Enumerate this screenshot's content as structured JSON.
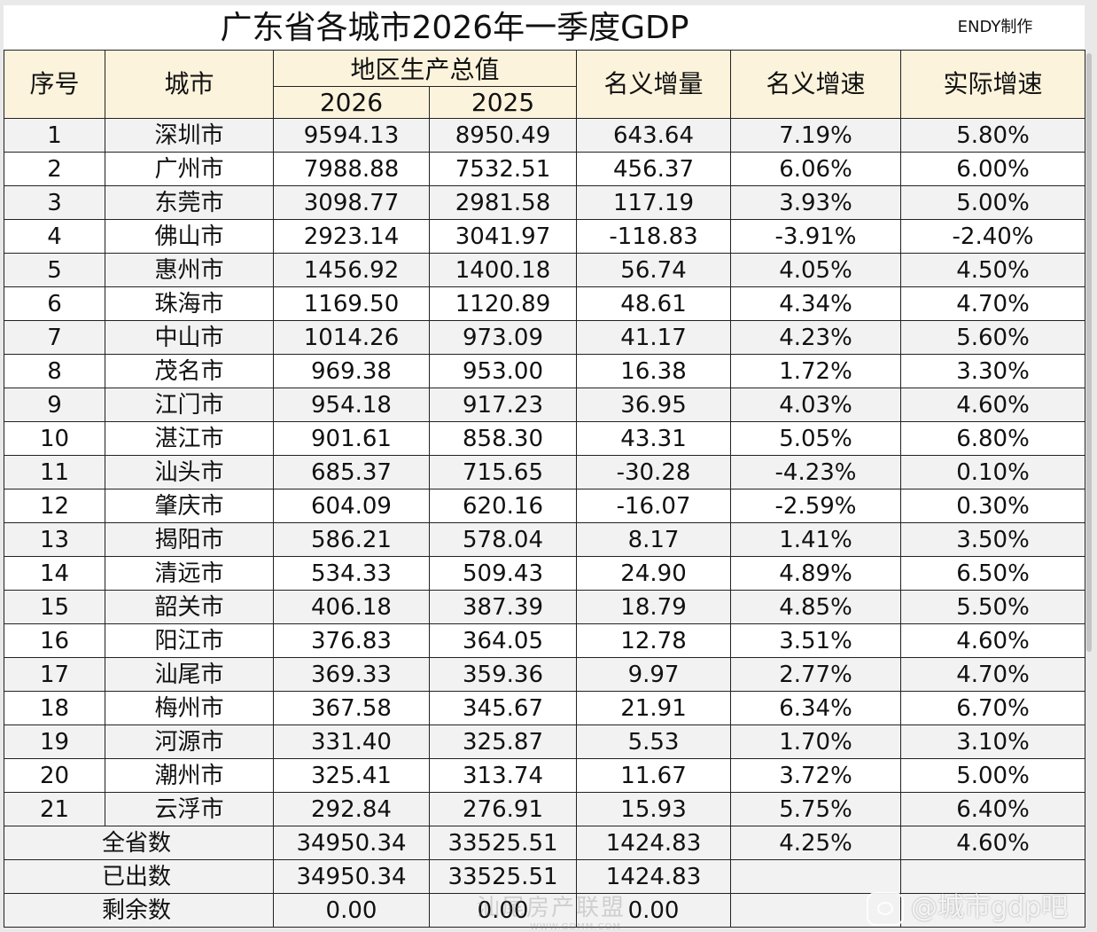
{
  "title": "广东省各城市2026年一季度GDP",
  "author_note": "ENDY制作",
  "headers": {
    "index": "序号",
    "city": "城市",
    "gdp_group": "地区生产总值",
    "year_a": "2026",
    "year_b": "2025",
    "nominal_increase": "名义增量",
    "nominal_growth": "名义增速",
    "real_growth": "实际增速"
  },
  "rows": [
    {
      "index": "1",
      "city": "深圳市",
      "gdp_2026": "9594.13",
      "gdp_2025": "8950.49",
      "increase": "643.64",
      "nominal_growth": "7.19%",
      "real_growth": "5.80%"
    },
    {
      "index": "2",
      "city": "广州市",
      "gdp_2026": "7988.88",
      "gdp_2025": "7532.51",
      "increase": "456.37",
      "nominal_growth": "6.06%",
      "real_growth": "6.00%"
    },
    {
      "index": "3",
      "city": "东莞市",
      "gdp_2026": "3098.77",
      "gdp_2025": "2981.58",
      "increase": "117.19",
      "nominal_growth": "3.93%",
      "real_growth": "5.00%"
    },
    {
      "index": "4",
      "city": "佛山市",
      "gdp_2026": "2923.14",
      "gdp_2025": "3041.97",
      "increase": "-118.83",
      "nominal_growth": "-3.91%",
      "real_growth": "-2.40%"
    },
    {
      "index": "5",
      "city": "惠州市",
      "gdp_2026": "1456.92",
      "gdp_2025": "1400.18",
      "increase": "56.74",
      "nominal_growth": "4.05%",
      "real_growth": "4.50%"
    },
    {
      "index": "6",
      "city": "珠海市",
      "gdp_2026": "1169.50",
      "gdp_2025": "1120.89",
      "increase": "48.61",
      "nominal_growth": "4.34%",
      "real_growth": "4.70%"
    },
    {
      "index": "7",
      "city": "中山市",
      "gdp_2026": "1014.26",
      "gdp_2025": "973.09",
      "increase": "41.17",
      "nominal_growth": "4.23%",
      "real_growth": "5.60%"
    },
    {
      "index": "8",
      "city": "茂名市",
      "gdp_2026": "969.38",
      "gdp_2025": "953.00",
      "increase": "16.38",
      "nominal_growth": "1.72%",
      "real_growth": "3.30%"
    },
    {
      "index": "9",
      "city": "江门市",
      "gdp_2026": "954.18",
      "gdp_2025": "917.23",
      "increase": "36.95",
      "nominal_growth": "4.03%",
      "real_growth": "4.60%"
    },
    {
      "index": "10",
      "city": "湛江市",
      "gdp_2026": "901.61",
      "gdp_2025": "858.30",
      "increase": "43.31",
      "nominal_growth": "5.05%",
      "real_growth": "6.80%"
    },
    {
      "index": "11",
      "city": "汕头市",
      "gdp_2026": "685.37",
      "gdp_2025": "715.65",
      "increase": "-30.28",
      "nominal_growth": "-4.23%",
      "real_growth": "0.10%"
    },
    {
      "index": "12",
      "city": "肇庆市",
      "gdp_2026": "604.09",
      "gdp_2025": "620.16",
      "increase": "-16.07",
      "nominal_growth": "-2.59%",
      "real_growth": "0.30%"
    },
    {
      "index": "13",
      "city": "揭阳市",
      "gdp_2026": "586.21",
      "gdp_2025": "578.04",
      "increase": "8.17",
      "nominal_growth": "1.41%",
      "real_growth": "3.50%"
    },
    {
      "index": "14",
      "city": "清远市",
      "gdp_2026": "534.33",
      "gdp_2025": "509.43",
      "increase": "24.90",
      "nominal_growth": "4.89%",
      "real_growth": "6.50%"
    },
    {
      "index": "15",
      "city": "韶关市",
      "gdp_2026": "406.18",
      "gdp_2025": "387.39",
      "increase": "18.79",
      "nominal_growth": "4.85%",
      "real_growth": "5.50%"
    },
    {
      "index": "16",
      "city": "阳江市",
      "gdp_2026": "376.83",
      "gdp_2025": "364.05",
      "increase": "12.78",
      "nominal_growth": "3.51%",
      "real_growth": "4.60%"
    },
    {
      "index": "17",
      "city": "汕尾市",
      "gdp_2026": "369.33",
      "gdp_2025": "359.36",
      "increase": "9.97",
      "nominal_growth": "2.77%",
      "real_growth": "4.70%"
    },
    {
      "index": "18",
      "city": "梅州市",
      "gdp_2026": "367.58",
      "gdp_2025": "345.67",
      "increase": "21.91",
      "nominal_growth": "6.34%",
      "real_growth": "6.70%"
    },
    {
      "index": "19",
      "city": "河源市",
      "gdp_2026": "331.40",
      "gdp_2025": "325.87",
      "increase": "5.53",
      "nominal_growth": "1.70%",
      "real_growth": "3.10%"
    },
    {
      "index": "20",
      "city": "潮州市",
      "gdp_2026": "325.41",
      "gdp_2025": "313.74",
      "increase": "11.67",
      "nominal_growth": "3.72%",
      "real_growth": "5.00%"
    },
    {
      "index": "21",
      "city": "云浮市",
      "gdp_2026": "292.84",
      "gdp_2025": "276.91",
      "increase": "15.93",
      "nominal_growth": "5.75%",
      "real_growth": "6.40%"
    }
  ],
  "summary": [
    {
      "label": "全省数",
      "gdp_2026": "34950.34",
      "gdp_2025": "33525.51",
      "increase": "1424.83",
      "nominal_growth": "4.25%",
      "real_growth": "4.60%"
    },
    {
      "label": "已出数",
      "gdp_2026": "34950.34",
      "gdp_2025": "33525.51",
      "increase": "1424.83",
      "nominal_growth": "",
      "real_growth": ""
    },
    {
      "label": "剩余数",
      "gdp_2026": "0.00",
      "gdp_2025": "0.00",
      "increase": "0.00",
      "nominal_growth": "",
      "real_growth": ""
    }
  ],
  "watermarks": {
    "left": "汕尾房产联盟",
    "left_sub": "WWW.GDMM.COM",
    "right": "@城市gdp吧"
  }
}
